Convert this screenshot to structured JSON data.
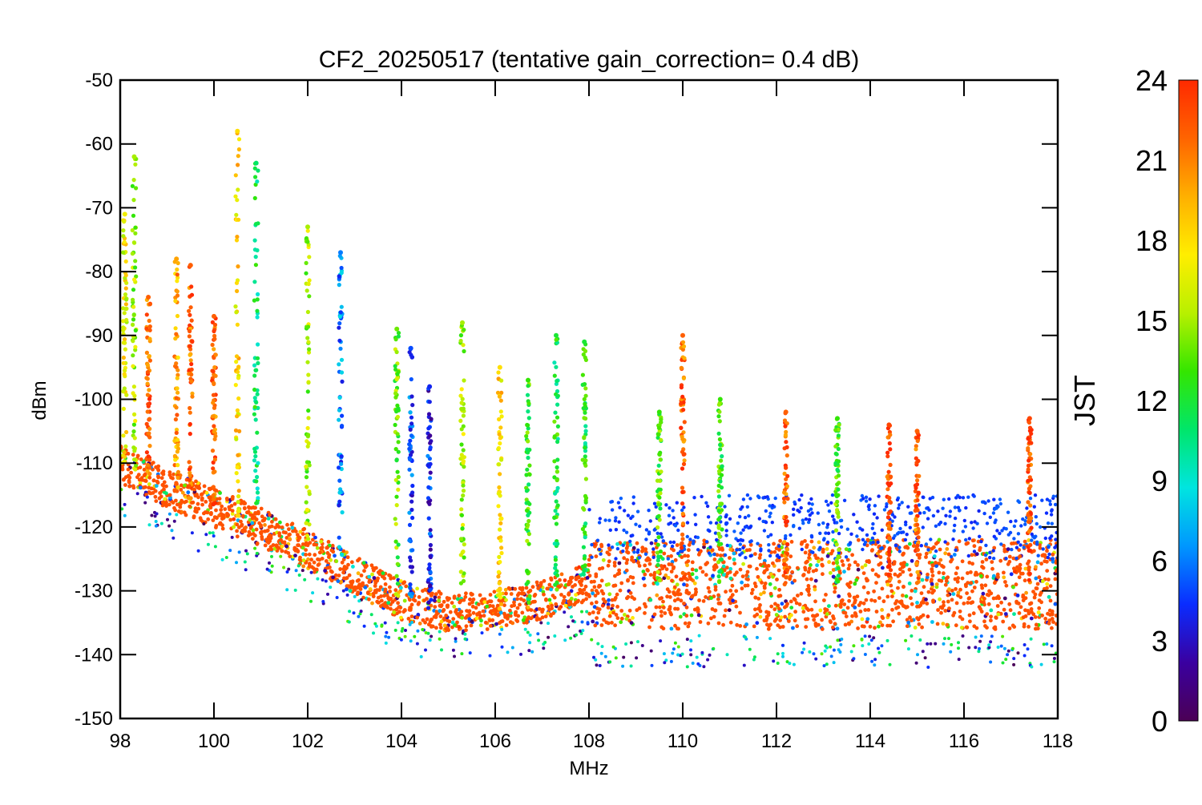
{
  "chart_data": {
    "type": "scatter",
    "title": "CF2_20250517 (tentative gain_correction=  0.4 dB)",
    "xlabel": "MHz",
    "ylabel": "dBm",
    "xlim": [
      98,
      118
    ],
    "ylim": [
      -150,
      -50
    ],
    "xticks": [
      98,
      100,
      102,
      104,
      106,
      108,
      110,
      112,
      114,
      116,
      118
    ],
    "yticks": [
      -50,
      -60,
      -70,
      -80,
      -90,
      -100,
      -110,
      -120,
      -130,
      -140,
      -150
    ],
    "grid": false,
    "marker": "asterisk",
    "color_by": "JST (hour)",
    "colorbar": {
      "label": "JST",
      "range": [
        0,
        24
      ],
      "ticks": [
        0,
        3,
        6,
        9,
        12,
        15,
        18,
        21,
        24
      ],
      "colormap": [
        "#4b0055",
        "#3a00a0",
        "#0a2cff",
        "#0097ff",
        "#00e5e0",
        "#00e66a",
        "#34e600",
        "#b8f000",
        "#ffee00",
        "#ffb000",
        "#ff6400",
        "#ff2a00"
      ]
    },
    "noise_floor": {
      "x": [
        98,
        99,
        100,
        101,
        102,
        103,
        104,
        105,
        106,
        107,
        108,
        108.05,
        110,
        112,
        114,
        116,
        118
      ],
      "y": [
        -110,
        -114,
        -117,
        -120,
        -123.5,
        -127.5,
        -131.5,
        -133.5,
        -133,
        -131.5,
        -128.5,
        -129,
        -129,
        -129,
        -129,
        -129,
        -129
      ]
    },
    "peaks": [
      {
        "freq": 98.1,
        "top_dbm": -71,
        "jst": 17
      },
      {
        "freq": 98.3,
        "top_dbm": -62,
        "jst": 15
      },
      {
        "freq": 98.6,
        "top_dbm": -84,
        "jst": 22
      },
      {
        "freq": 99.2,
        "top_dbm": -78,
        "jst": 20
      },
      {
        "freq": 99.5,
        "top_dbm": -79,
        "jst": 22
      },
      {
        "freq": 100.0,
        "top_dbm": -87,
        "jst": 22
      },
      {
        "freq": 100.5,
        "top_dbm": -58,
        "jst": 18
      },
      {
        "freq": 100.9,
        "top_dbm": -63,
        "jst": 11
      },
      {
        "freq": 102.0,
        "top_dbm": -73,
        "jst": 15
      },
      {
        "freq": 102.7,
        "top_dbm": -77,
        "jst": 6
      },
      {
        "freq": 103.9,
        "top_dbm": -89,
        "jst": 14
      },
      {
        "freq": 104.2,
        "top_dbm": -92,
        "jst": 5
      },
      {
        "freq": 104.6,
        "top_dbm": -98,
        "jst": 4
      },
      {
        "freq": 105.3,
        "top_dbm": -88,
        "jst": 15
      },
      {
        "freq": 106.1,
        "top_dbm": -95,
        "jst": 18
      },
      {
        "freq": 106.7,
        "top_dbm": -97,
        "jst": 13
      },
      {
        "freq": 107.3,
        "top_dbm": -90,
        "jst": 12
      },
      {
        "freq": 107.9,
        "top_dbm": -91,
        "jst": 12
      },
      {
        "freq": 109.5,
        "top_dbm": -102,
        "jst": 13
      },
      {
        "freq": 110.0,
        "top_dbm": -90,
        "jst": 22
      },
      {
        "freq": 110.8,
        "top_dbm": -100,
        "jst": 13
      },
      {
        "freq": 112.2,
        "top_dbm": -102,
        "jst": 22
      },
      {
        "freq": 113.3,
        "top_dbm": -103,
        "jst": 13
      },
      {
        "freq": 114.4,
        "top_dbm": -104,
        "jst": 23
      },
      {
        "freq": 115.0,
        "top_dbm": -105,
        "jst": 22
      },
      {
        "freq": 117.4,
        "top_dbm": -103,
        "jst": 23
      }
    ]
  }
}
